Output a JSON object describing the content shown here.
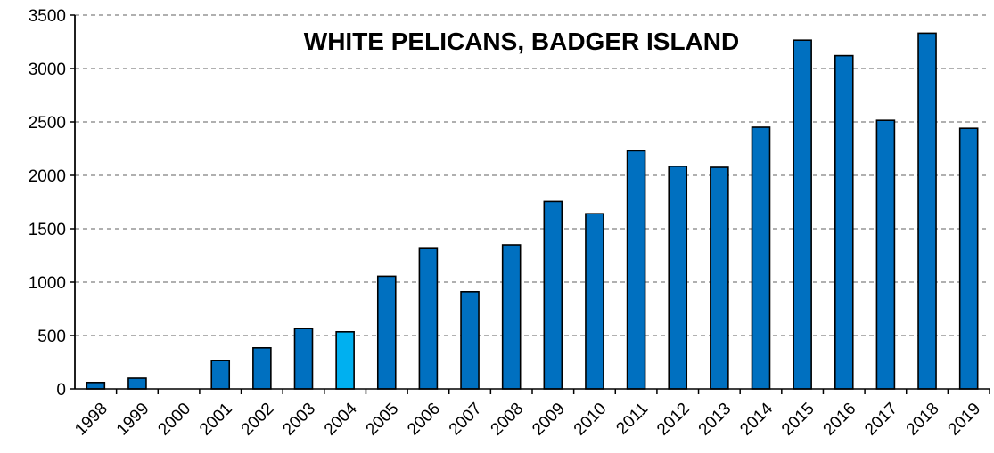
{
  "chart_data": {
    "type": "bar",
    "title": "WHITE PELICANS, BADGER ISLAND",
    "xlabel": "",
    "ylabel": "",
    "ylim": [
      0,
      3500
    ],
    "yticks": [
      0,
      500,
      1000,
      1500,
      2000,
      2500,
      3000,
      3500
    ],
    "grid": true,
    "legend": "none",
    "categories": [
      "1998",
      "1999",
      "2000",
      "2001",
      "2002",
      "2003",
      "2004",
      "2005",
      "2006",
      "2007",
      "2008",
      "2009",
      "2010",
      "2011",
      "2012",
      "2013",
      "2014",
      "2015",
      "2016",
      "2017",
      "2018",
      "2019"
    ],
    "values": [
      60,
      100,
      0,
      265,
      385,
      565,
      535,
      1055,
      1315,
      910,
      1350,
      1755,
      1640,
      2230,
      2085,
      2075,
      2450,
      3265,
      3120,
      2515,
      3330,
      2440
    ],
    "colors": {
      "bar": "#0070C0",
      "highlight_bar": "#00B0F0",
      "bar_outline": "#000000",
      "grid": "#808080"
    },
    "highlight_category": "2004"
  }
}
